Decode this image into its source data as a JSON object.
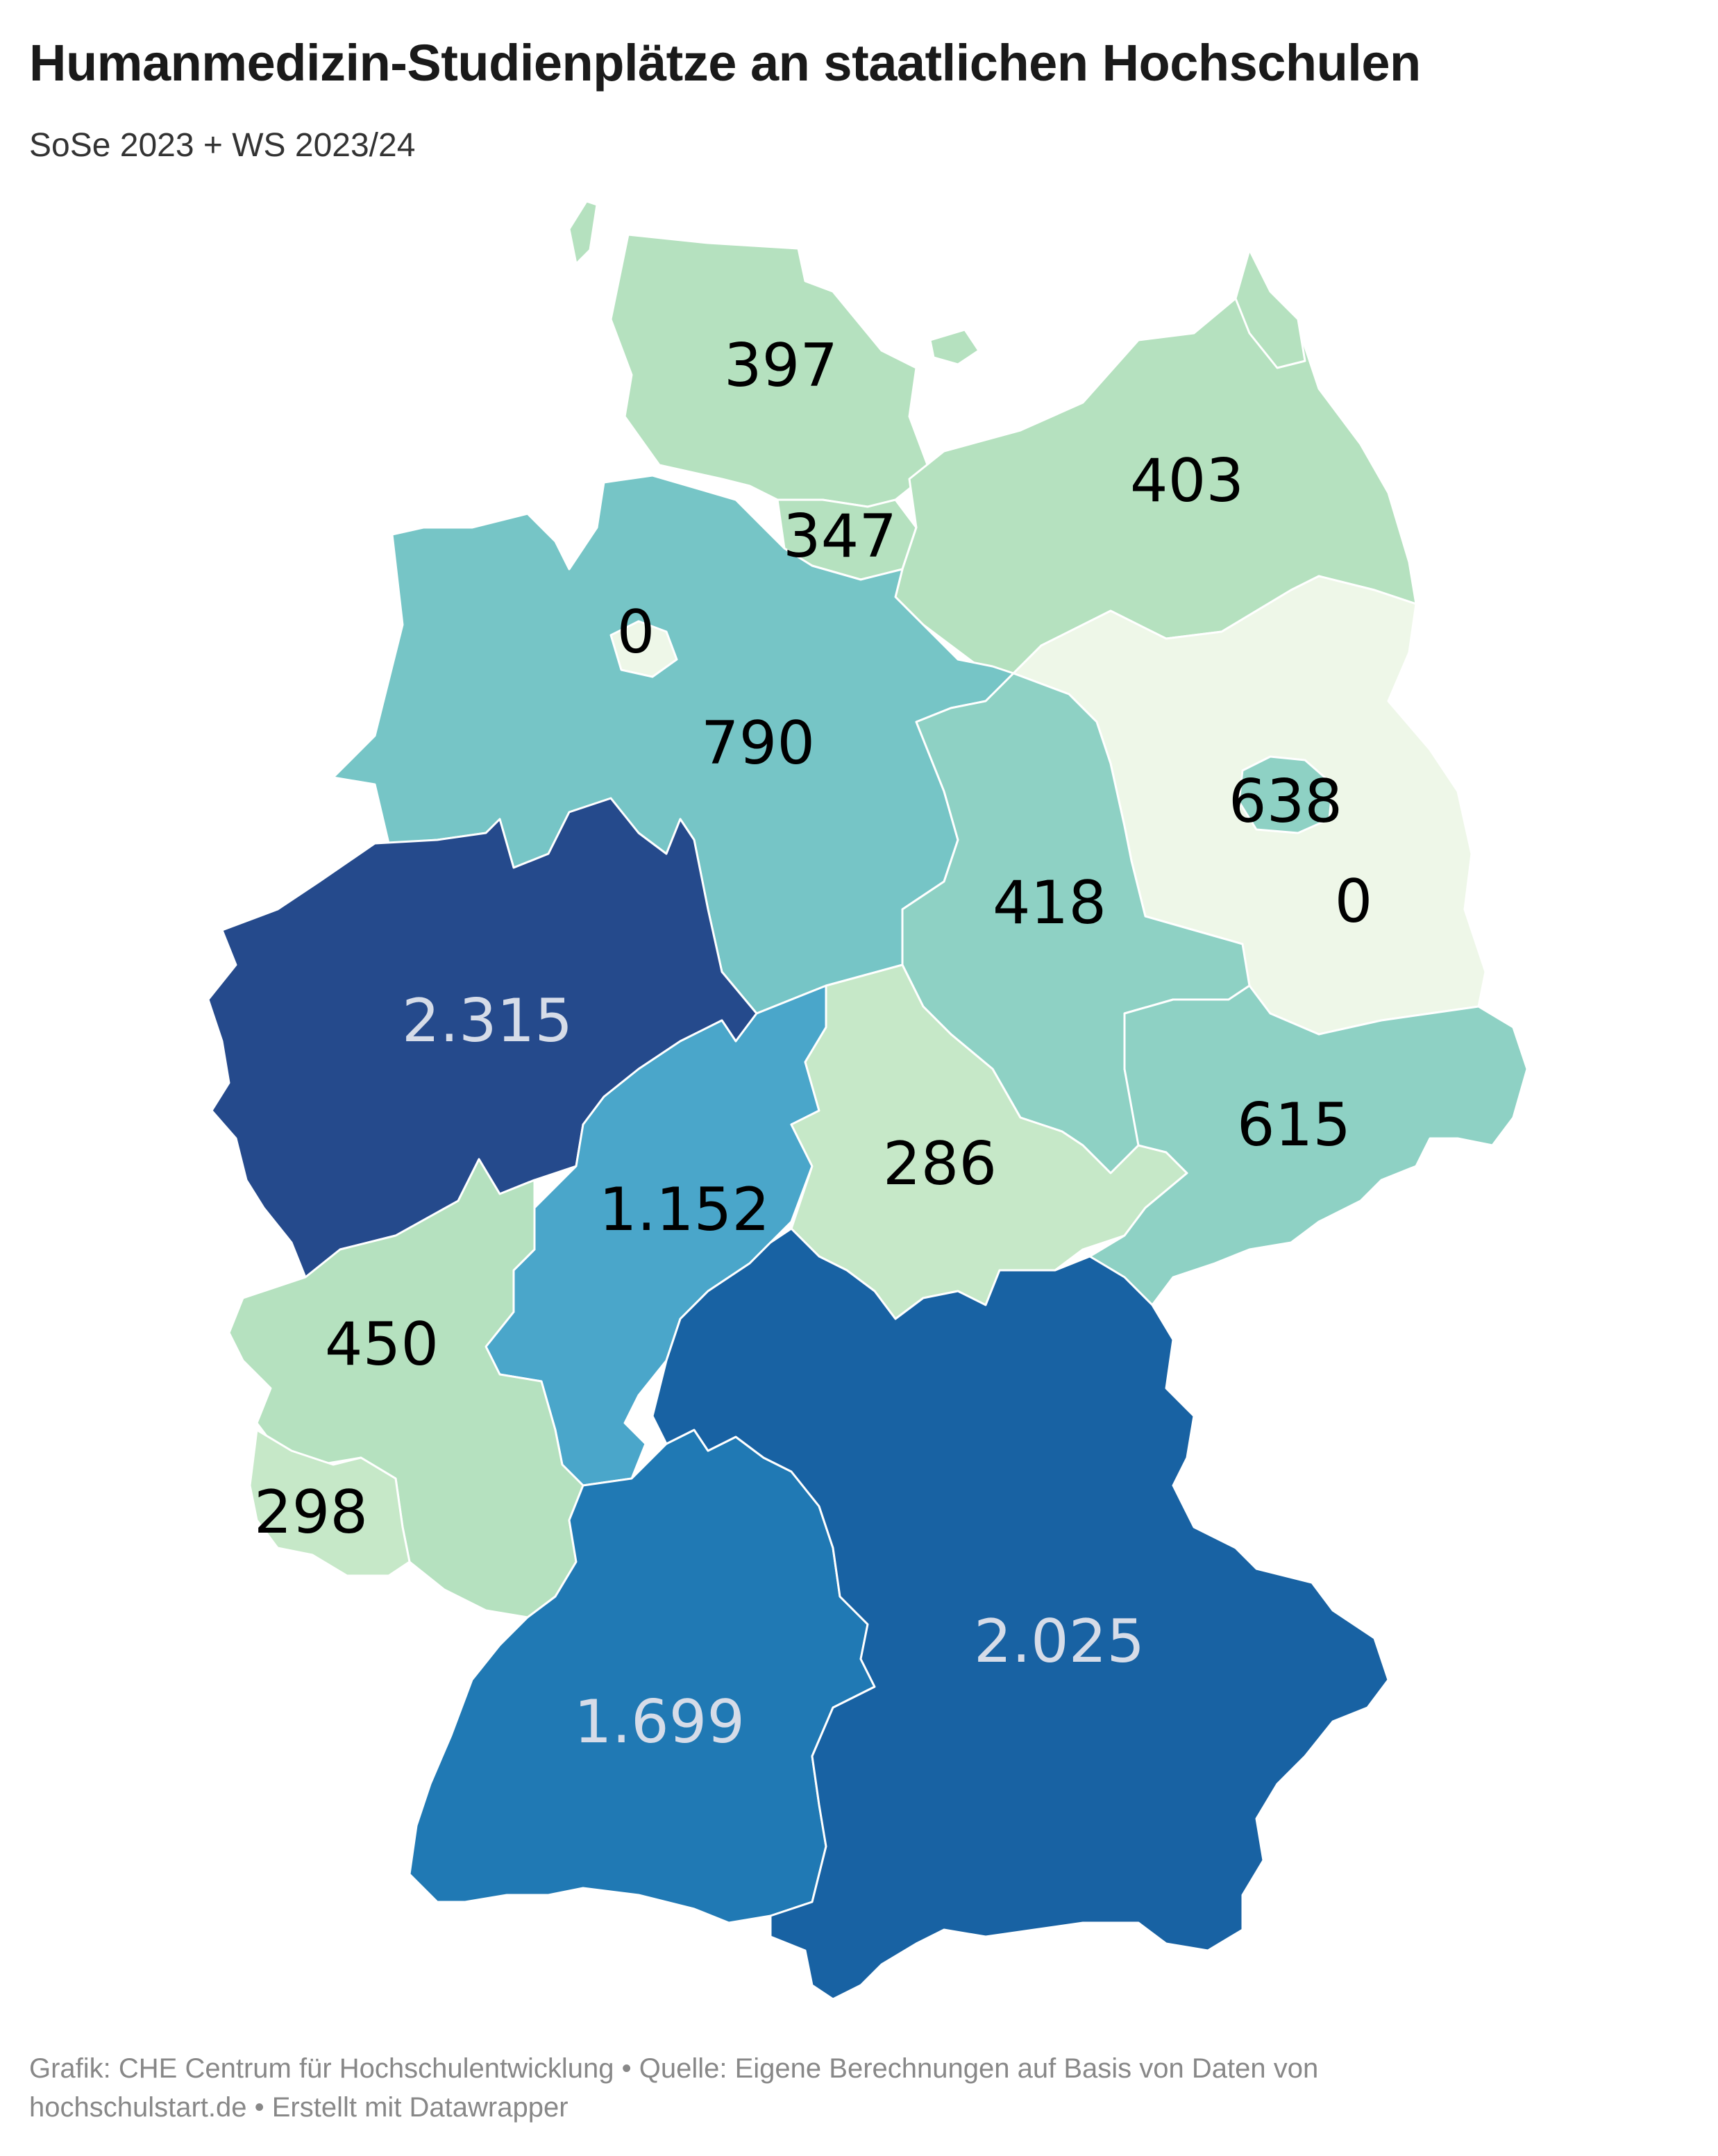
{
  "title": "Humanmedizin-Studienplätze an staatlichen Hochschulen",
  "subtitle": "SoSe 2023 + WS 2023/24",
  "footer": {
    "line1": "Grafik: CHE Centrum für Hochschulentwicklung • Quelle: Eigene Berechnungen auf Basis von Daten von",
    "line2": "hochschulstart.de • Erstellt mit Datawrapper"
  },
  "regions": [
    {
      "id": "schleswig-holstein",
      "label": "397",
      "value": 397,
      "fill": "#b5e1bf",
      "text_color": "#000000"
    },
    {
      "id": "hamburg",
      "label": "347",
      "value": 347,
      "fill": "#b5e1bf",
      "text_color": "#000000"
    },
    {
      "id": "mecklenburg-vorpommern",
      "label": "403",
      "value": 403,
      "fill": "#b5e1bf",
      "text_color": "#000000"
    },
    {
      "id": "bremen",
      "label": "0",
      "value": 0,
      "fill": "#eef7e8",
      "text_color": "#000000"
    },
    {
      "id": "niedersachsen",
      "label": "790",
      "value": 790,
      "fill": "#76c5c6",
      "text_color": "#000000"
    },
    {
      "id": "berlin",
      "label": "638",
      "value": 638,
      "fill": "#8ed1c4",
      "text_color": "#000000"
    },
    {
      "id": "brandenburg",
      "label": "0",
      "value": 0,
      "fill": "#eef7e8",
      "text_color": "#000000"
    },
    {
      "id": "sachsen-anhalt",
      "label": "418",
      "value": 418,
      "fill": "#b5e1bf",
      "text_color": "#000000"
    },
    {
      "id": "nordrhein-westfalen",
      "label": "2.315",
      "value": 2315,
      "fill": "#254a8c",
      "text_color": "#d6dce8"
    },
    {
      "id": "sachsen",
      "label": "615",
      "value": 615,
      "fill": "#8ed1c4",
      "text_color": "#000000"
    },
    {
      "id": "thueringen",
      "label": "286",
      "value": 286,
      "fill": "#c6e8c8",
      "text_color": "#000000"
    },
    {
      "id": "hessen",
      "label": "1.152",
      "value": 1152,
      "fill": "#4aa6ca",
      "text_color": "#000000"
    },
    {
      "id": "rheinland-pfalz",
      "label": "450",
      "value": 450,
      "fill": "#b5e1bf",
      "text_color": "#000000"
    },
    {
      "id": "saarland",
      "label": "298",
      "value": 298,
      "fill": "#c6e8c8",
      "text_color": "#000000"
    },
    {
      "id": "baden-wuerttemberg",
      "label": "1.699",
      "value": 1699,
      "fill": "#2079b4",
      "text_color": "#d6dce8"
    },
    {
      "id": "bayern",
      "label": "2.025",
      "value": 2025,
      "fill": "#1862a3",
      "text_color": "#d6dce8"
    }
  ]
}
